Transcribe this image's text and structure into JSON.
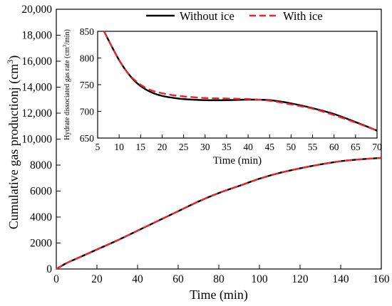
{
  "chart_data": [
    {
      "id": "main",
      "type": "line",
      "xlabel": "Time (min)",
      "ylabel": "Cumulative gas productionj (cm",
      "ylabel_sup": "3",
      "ylabel_close": ")",
      "xlim": [
        0,
        160
      ],
      "ylim": [
        0,
        20000
      ],
      "x_ticks": [
        0,
        20,
        40,
        60,
        80,
        100,
        120,
        140,
        160
      ],
      "y_ticks": [
        0,
        2000,
        4000,
        6000,
        8000,
        10000,
        12000,
        14000,
        16000,
        18000,
        20000
      ],
      "y_tick_labels": [
        "0",
        "2000",
        "4000",
        "6000",
        "8000",
        "10,000",
        "12,000",
        "14,000",
        "16,000",
        "18,000",
        "20,000"
      ],
      "legend": {
        "position": "top-right"
      },
      "series": [
        {
          "name": "Without ice",
          "color": "#000000",
          "style": "solid",
          "x": [
            0,
            5,
            10,
            20,
            30,
            40,
            50,
            60,
            70,
            80,
            90,
            100,
            110,
            120,
            130,
            140,
            150,
            160
          ],
          "y": [
            0,
            450,
            800,
            1500,
            2200,
            2950,
            3700,
            4450,
            5200,
            5850,
            6400,
            6950,
            7400,
            7750,
            8050,
            8300,
            8450,
            8550
          ]
        },
        {
          "name": "With ice",
          "color": "#e8262b",
          "style": "dashed",
          "x": [
            0,
            5,
            10,
            20,
            30,
            40,
            50,
            60,
            70,
            80,
            90,
            100,
            110,
            120,
            130,
            140,
            150,
            160
          ],
          "y": [
            0,
            450,
            800,
            1500,
            2200,
            2950,
            3700,
            4450,
            5200,
            5850,
            6400,
            6950,
            7400,
            7750,
            8050,
            8300,
            8450,
            8550
          ]
        }
      ]
    },
    {
      "id": "inset",
      "type": "line",
      "xlabel": "Time (min)",
      "ylabel": "Hydrate dissociated gas rate (cm",
      "ylabel_sup": "3",
      "ylabel_close": "/min)",
      "xlim": [
        5,
        70
      ],
      "ylim": [
        650,
        850
      ],
      "x_ticks": [
        5,
        10,
        15,
        20,
        25,
        30,
        35,
        40,
        45,
        50,
        55,
        60,
        65,
        70
      ],
      "y_ticks": [
        650,
        700,
        750,
        800,
        850
      ],
      "series": [
        {
          "name": "Without ice",
          "color": "#000000",
          "style": "solid",
          "x": [
            6.5,
            8,
            10,
            12,
            14,
            16,
            18,
            20,
            22,
            25,
            30,
            35,
            40,
            45,
            50,
            55,
            60,
            65,
            70
          ],
          "y": [
            850,
            826,
            796,
            772,
            754,
            742,
            734,
            729,
            726,
            723,
            721,
            721,
            722,
            721,
            715,
            706,
            695,
            680,
            664
          ]
        },
        {
          "name": "With ice",
          "color": "#e8262b",
          "style": "dashed",
          "x": [
            6.5,
            8,
            10,
            12,
            14,
            16,
            18,
            20,
            22,
            25,
            30,
            35,
            40,
            45,
            50,
            55,
            60,
            65,
            70
          ],
          "y": [
            850,
            826,
            796,
            772,
            756,
            745,
            738,
            734,
            731,
            728,
            725,
            724,
            723,
            720,
            713,
            705,
            693,
            679,
            664
          ]
        }
      ]
    }
  ]
}
